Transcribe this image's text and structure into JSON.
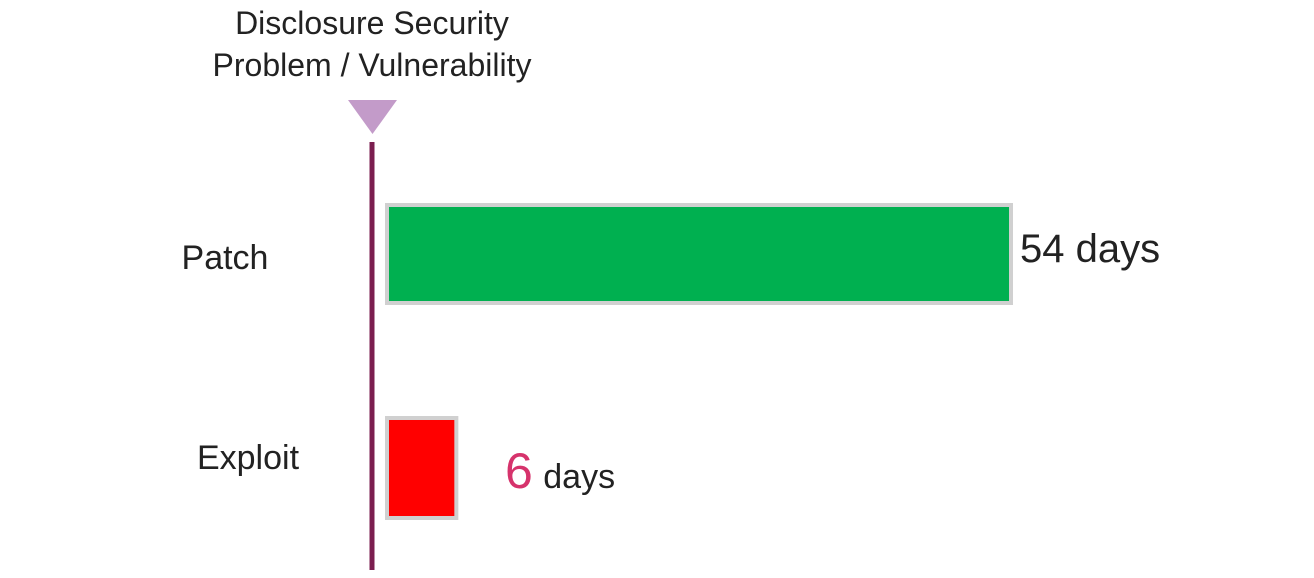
{
  "chart_data": {
    "type": "bar",
    "orientation": "horizontal",
    "marker_label": [
      "Disclosure Security",
      "Problem / Vulnerability"
    ],
    "categories": [
      "Patch",
      "Exploit"
    ],
    "values": [
      54,
      6
    ],
    "data_labels": [
      {
        "number": "54",
        "unit": "days"
      },
      {
        "number": "6",
        "unit": "days"
      }
    ],
    "colors": {
      "bars": [
        "#00b050",
        "#ff0000"
      ],
      "bar_border": "#d0d0d0",
      "marker_line": "#7b1e4f",
      "marker_triangle": "#c39bc9",
      "highlight_number": "#d6336c"
    },
    "xlim": [
      0,
      54
    ],
    "grid": false,
    "legend": "none"
  }
}
